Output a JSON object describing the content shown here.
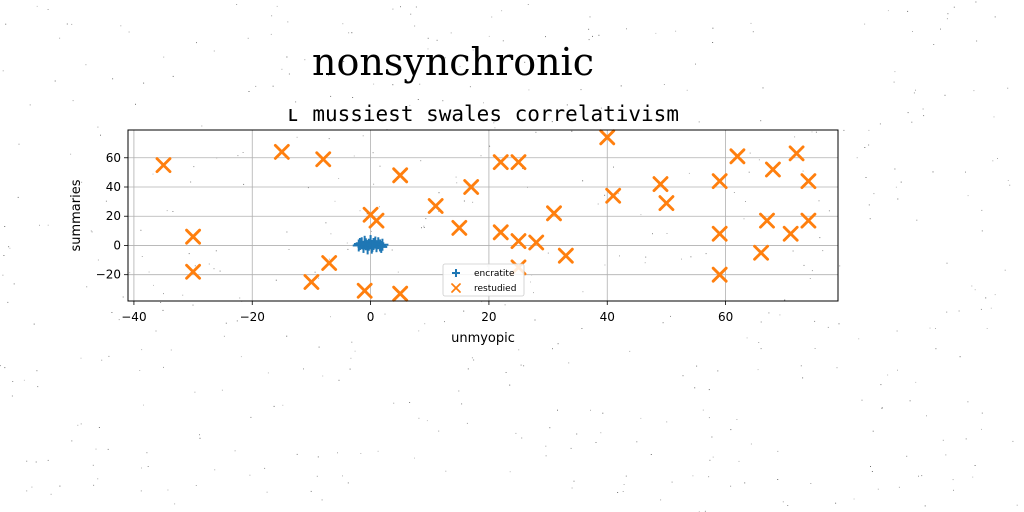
{
  "chart_data": {
    "type": "scatter",
    "suptitle": "nonsynchronic",
    "title": "ʟ mussiest swales correlativism",
    "xlabel": "unmyopic",
    "ylabel": "summaries",
    "xlim": [
      -41,
      79
    ],
    "ylim": [
      -38,
      79
    ],
    "xticks": [
      -40,
      -20,
      0,
      20,
      40,
      60
    ],
    "yticks": [
      -20,
      0,
      20,
      40,
      60
    ],
    "grid": true,
    "legend_position": "lower-center",
    "series": [
      {
        "name": "encratite",
        "marker": "plus",
        "color": "#1f77b4",
        "points": [
          [
            -2.0,
            0.0
          ],
          [
            -1.5,
            1.5
          ],
          [
            -1.2,
            -1.0
          ],
          [
            -1.0,
            2.5
          ],
          [
            -0.5,
            -2.0
          ],
          [
            -0.3,
            0.5
          ],
          [
            0.0,
            3.0
          ],
          [
            0.2,
            -1.5
          ],
          [
            0.5,
            1.0
          ],
          [
            0.8,
            2.0
          ],
          [
            1.0,
            -0.5
          ],
          [
            1.3,
            1.5
          ],
          [
            1.6,
            0.0
          ],
          [
            2.0,
            0.5
          ],
          [
            -0.8,
            0.8
          ],
          [
            0.3,
            -0.3
          ],
          [
            1.8,
            -1.0
          ],
          [
            -1.8,
            1.0
          ]
        ]
      },
      {
        "name": "restudied",
        "marker": "x",
        "color": "#ff7f0e",
        "points": [
          [
            -35,
            55
          ],
          [
            -30,
            6
          ],
          [
            -30,
            -18
          ],
          [
            -15,
            64
          ],
          [
            -8,
            59
          ],
          [
            -10,
            -25
          ],
          [
            -7,
            -12
          ],
          [
            -1,
            -31
          ],
          [
            0,
            21
          ],
          [
            1,
            17
          ],
          [
            5,
            48
          ],
          [
            5,
            -33
          ],
          [
            11,
            27
          ],
          [
            15,
            12
          ],
          [
            17,
            40
          ],
          [
            22,
            57
          ],
          [
            22,
            9
          ],
          [
            25,
            57
          ],
          [
            25,
            3
          ],
          [
            25,
            -15
          ],
          [
            28,
            2
          ],
          [
            31,
            22
          ],
          [
            33,
            -7
          ],
          [
            40,
            74
          ],
          [
            41,
            34
          ],
          [
            49,
            42
          ],
          [
            50,
            29
          ],
          [
            59,
            44
          ],
          [
            59,
            8
          ],
          [
            59,
            -20
          ],
          [
            62,
            61
          ],
          [
            66,
            -5
          ],
          [
            67,
            17
          ],
          [
            68,
            52
          ],
          [
            71,
            8
          ],
          [
            72,
            63
          ],
          [
            74,
            44
          ],
          [
            74,
            17
          ]
        ]
      }
    ]
  }
}
